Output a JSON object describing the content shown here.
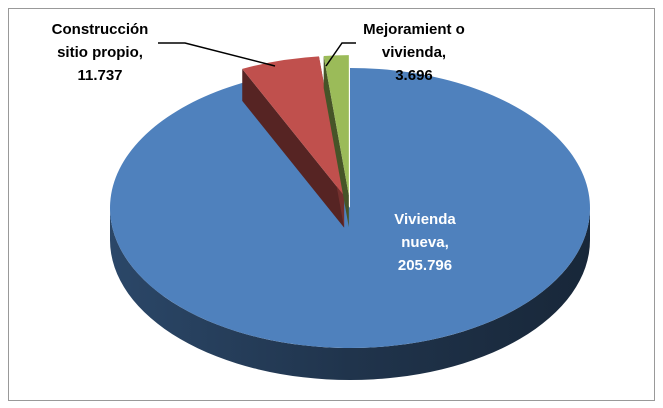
{
  "chart_data": {
    "type": "pie",
    "three_d": true,
    "categories": [
      "Vivienda nueva",
      "Construcción sitio propio",
      "Mejoramient o vivienda"
    ],
    "values": [
      205796,
      11737,
      3696
    ],
    "value_labels": [
      "205.796",
      "11.737",
      "3.696"
    ],
    "label_separator": ",",
    "colors": [
      "#4f81bd",
      "#c0504d",
      "#9bbb59"
    ]
  }
}
